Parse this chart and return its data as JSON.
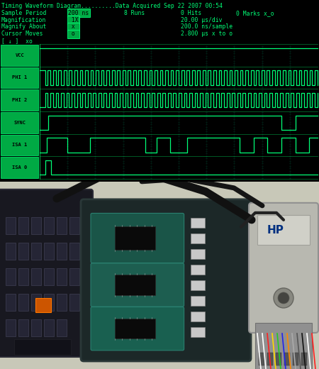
{
  "bg_color": "#000000",
  "screen_bg": "#001800",
  "green_bright": "#00ff77",
  "green_mid": "#00cc55",
  "green_dim": "#008833",
  "green_label_bg": "#00aa44",
  "title_line": "Timing Waveform Diagram..........Data Acquired Sep 22 2007 00:54",
  "signals": [
    "VCC",
    "PHI 1",
    "PHI 2",
    "SYNC",
    "ISA 1",
    "ISA 0"
  ],
  "dot_color": "#003322",
  "photo_bg": "#c8c8b0",
  "keyboard_color": "#111118",
  "board_outer": "#1a2a2a",
  "board_teal": "#1a5a4a",
  "hp_gray": "#b0b0a8",
  "table_color": "#d0d0c0"
}
